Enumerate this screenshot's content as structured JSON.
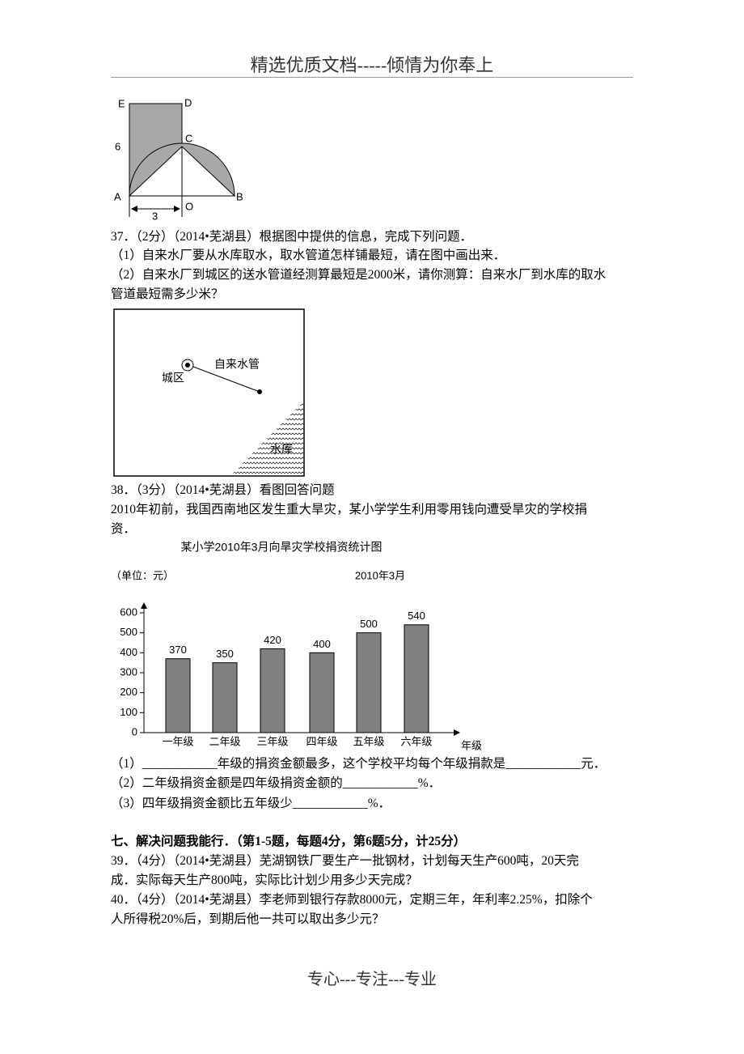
{
  "header": "精选优质文档-----倾情为你奉上",
  "figure1": {
    "labels": [
      "E",
      "D",
      "6",
      "C",
      "A",
      "O",
      "B",
      "3"
    ]
  },
  "q37": {
    "stem": "37．（2分）（2014•芜湖县）根据图中提供的信息，完成下列问题．",
    "parts": [
      "（1）自来水厂要从水库取水，取水管道怎样铺最短，请在图中画出来．",
      "（2）自来水厂到城区的送水管道经测算最短是2000米，请你测算：自来水厂到水库的取水",
      "管道最短需多少米？"
    ]
  },
  "map": {
    "labels": [
      "城区",
      "自来水管",
      "水库"
    ]
  },
  "q38": {
    "stem": "38．（3分）（2014•芜湖县）看图回答问题",
    "intro": [
      "2010年初前，我国西南地区发生重大旱灾，某小学学生利用零用钱向遭受旱灾的学校捐",
      "资．"
    ],
    "parts": [
      "（1）____________年级的捐资金额最多，这个学校平均每个年级捐款是____________元．",
      "（2）二年级捐资金额是四年级捐资金额的____________%．",
      "（3）四年级捐资金额比五年级少____________%．"
    ]
  },
  "chart": {
    "type": "bar",
    "title": "某小学2010年3月向旱灾学校捐资统计图",
    "unit_label": "（单位：元）",
    "date_label": "2010年3月",
    "x_label": "年级",
    "categories": [
      "一年级",
      "二年级",
      "三年级",
      "四年级",
      "五年级",
      "六年级"
    ],
    "values": [
      370,
      350,
      420,
      400,
      500,
      540
    ],
    "color": "#808080",
    "ylim": [
      0,
      600
    ],
    "yticks": [
      0,
      100,
      200,
      300,
      400,
      500,
      600
    ]
  },
  "section7": "七、解决问题我能行．（第1-5题，每题4分，第6题5分，计25分）",
  "q39": [
    "39．（4分）（2014•芜湖县）芜湖钢铁厂要生产一批钢材，计划每天生产600吨，20天完",
    "成．实际每天生产800吨，实际比计划少用多少天完成？"
  ],
  "q40": [
    "40．（4分）（2014•芜湖县）李老师到银行存款8000元，定期三年，年利率2.25%，扣除个",
    "人所得税20%后，到期后他一共可以取出多少元？"
  ],
  "footer": "专心---专注---专业"
}
